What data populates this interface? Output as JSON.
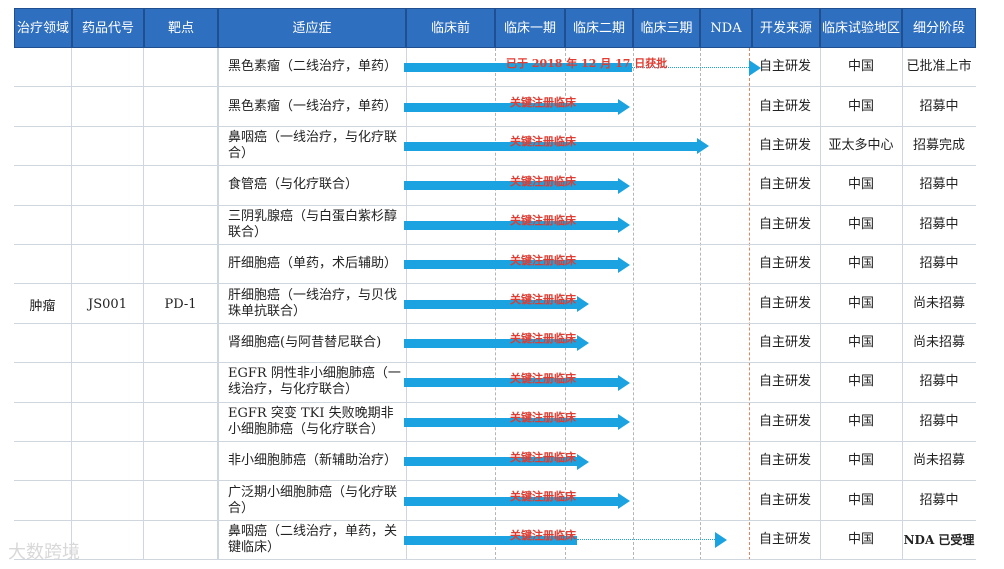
{
  "header": [
    {
      "key": "area",
      "lines": [
        "治疗",
        "领域"
      ]
    },
    {
      "key": "code",
      "lines": [
        "药品代号"
      ]
    },
    {
      "key": "target",
      "lines": [
        "靶点"
      ]
    },
    {
      "key": "indication",
      "lines": [
        "适应症"
      ]
    },
    {
      "key": "preclinical",
      "lines": [
        "临床前"
      ]
    },
    {
      "key": "phase1",
      "lines": [
        "临床一",
        "期"
      ]
    },
    {
      "key": "phase2",
      "lines": [
        "临床二",
        "期"
      ]
    },
    {
      "key": "phase3",
      "lines": [
        "临床三",
        "期"
      ]
    },
    {
      "key": "nda",
      "lines": [
        "NDA"
      ]
    },
    {
      "key": "dev_source",
      "lines": [
        "开发来源"
      ]
    },
    {
      "key": "trial_region",
      "lines": [
        "临床试验",
        "地区"
      ]
    },
    {
      "key": "sub_stage",
      "lines": [
        "细分阶段"
      ]
    }
  ],
  "group": {
    "area": "肿瘤",
    "code": "JS001",
    "target": "PD-1"
  },
  "rows": [
    {
      "indication": "黑色素瘤（二线治疗，单药）",
      "dev": "自主研发",
      "region": "中国",
      "stage": "已批准上市",
      "label": "已于 2018 年 12 月 17 日获批",
      "progress": 0.66,
      "dotted_to": 1.0,
      "bold": false
    },
    {
      "indication": "黑色素瘤（一线治疗，单药）",
      "dev": "自主研发",
      "region": "中国",
      "stage": "招募中",
      "label": "关键注册临床",
      "progress": 0.62,
      "dotted_to": null,
      "bold": false
    },
    {
      "indication": "鼻咽癌（一线治疗，与化疗联合）",
      "dev": "自主研发",
      "region": "亚太多中心",
      "stage": "招募完成",
      "label": "关键注册临床",
      "progress": 0.85,
      "dotted_to": null,
      "bold": false
    },
    {
      "indication": "食管癌（与化疗联合）",
      "dev": "自主研发",
      "region": "中国",
      "stage": "招募中",
      "label": "关键注册临床",
      "progress": 0.62,
      "dotted_to": null,
      "bold": false
    },
    {
      "indication": "三阴乳腺癌（与白蛋白紫杉醇联合）",
      "dev": "自主研发",
      "region": "中国",
      "stage": "招募中",
      "label": "关键注册临床",
      "progress": 0.62,
      "dotted_to": null,
      "bold": false
    },
    {
      "indication": "肝细胞癌（单药，术后辅助）",
      "dev": "自主研发",
      "region": "中国",
      "stage": "招募中",
      "label": "关键注册临床",
      "progress": 0.62,
      "dotted_to": null,
      "bold": false
    },
    {
      "indication": "肝细胞癌（一线治疗，与贝伐珠单抗联合）",
      "dev": "自主研发",
      "region": "中国",
      "stage": "尚未招募",
      "label": "关键注册临床",
      "progress": 0.5,
      "dotted_to": null,
      "bold": false
    },
    {
      "indication": "肾细胞癌(与阿昔替尼联合)",
      "dev": "自主研发",
      "region": "中国",
      "stage": "尚未招募",
      "label": "关键注册临床",
      "progress": 0.5,
      "dotted_to": null,
      "bold": false
    },
    {
      "indication": "EGFR 阴性非小细胞肺癌（一线治疗，与化疗联合）",
      "dev": "自主研发",
      "region": "中国",
      "stage": "招募中",
      "label": "关键注册临床",
      "progress": 0.62,
      "dotted_to": null,
      "bold": false
    },
    {
      "indication": "EGFR 突变 TKI 失败晚期非小细胞肺癌（与化疗联合）",
      "dev": "自主研发",
      "region": "中国",
      "stage": "招募中",
      "label": "关键注册临床",
      "progress": 0.62,
      "dotted_to": null,
      "bold": false
    },
    {
      "indication": "非小细胞肺癌（新辅助治疗）",
      "dev": "自主研发",
      "region": "中国",
      "stage": "尚未招募",
      "label": "关键注册临床",
      "progress": 0.5,
      "dotted_to": null,
      "bold": false
    },
    {
      "indication": "广泛期小细胞肺癌（与化疗联合）",
      "dev": "自主研发",
      "region": "中国",
      "stage": "招募中",
      "label": "关键注册临床",
      "progress": 0.62,
      "dotted_to": null,
      "bold": false
    },
    {
      "indication": "鼻咽癌（二线治疗，单药，关键临床）",
      "dev": "自主研发",
      "region": "中国",
      "stage": "NDA 已受理",
      "label": "关键注册临床",
      "progress": 0.5,
      "dotted_to": 0.9,
      "bold": true
    }
  ],
  "watermark": "大数跨境",
  "colors": {
    "header_bg": "#2f6fbf",
    "bar": "#1aa3e0",
    "label": "#e03c31"
  }
}
